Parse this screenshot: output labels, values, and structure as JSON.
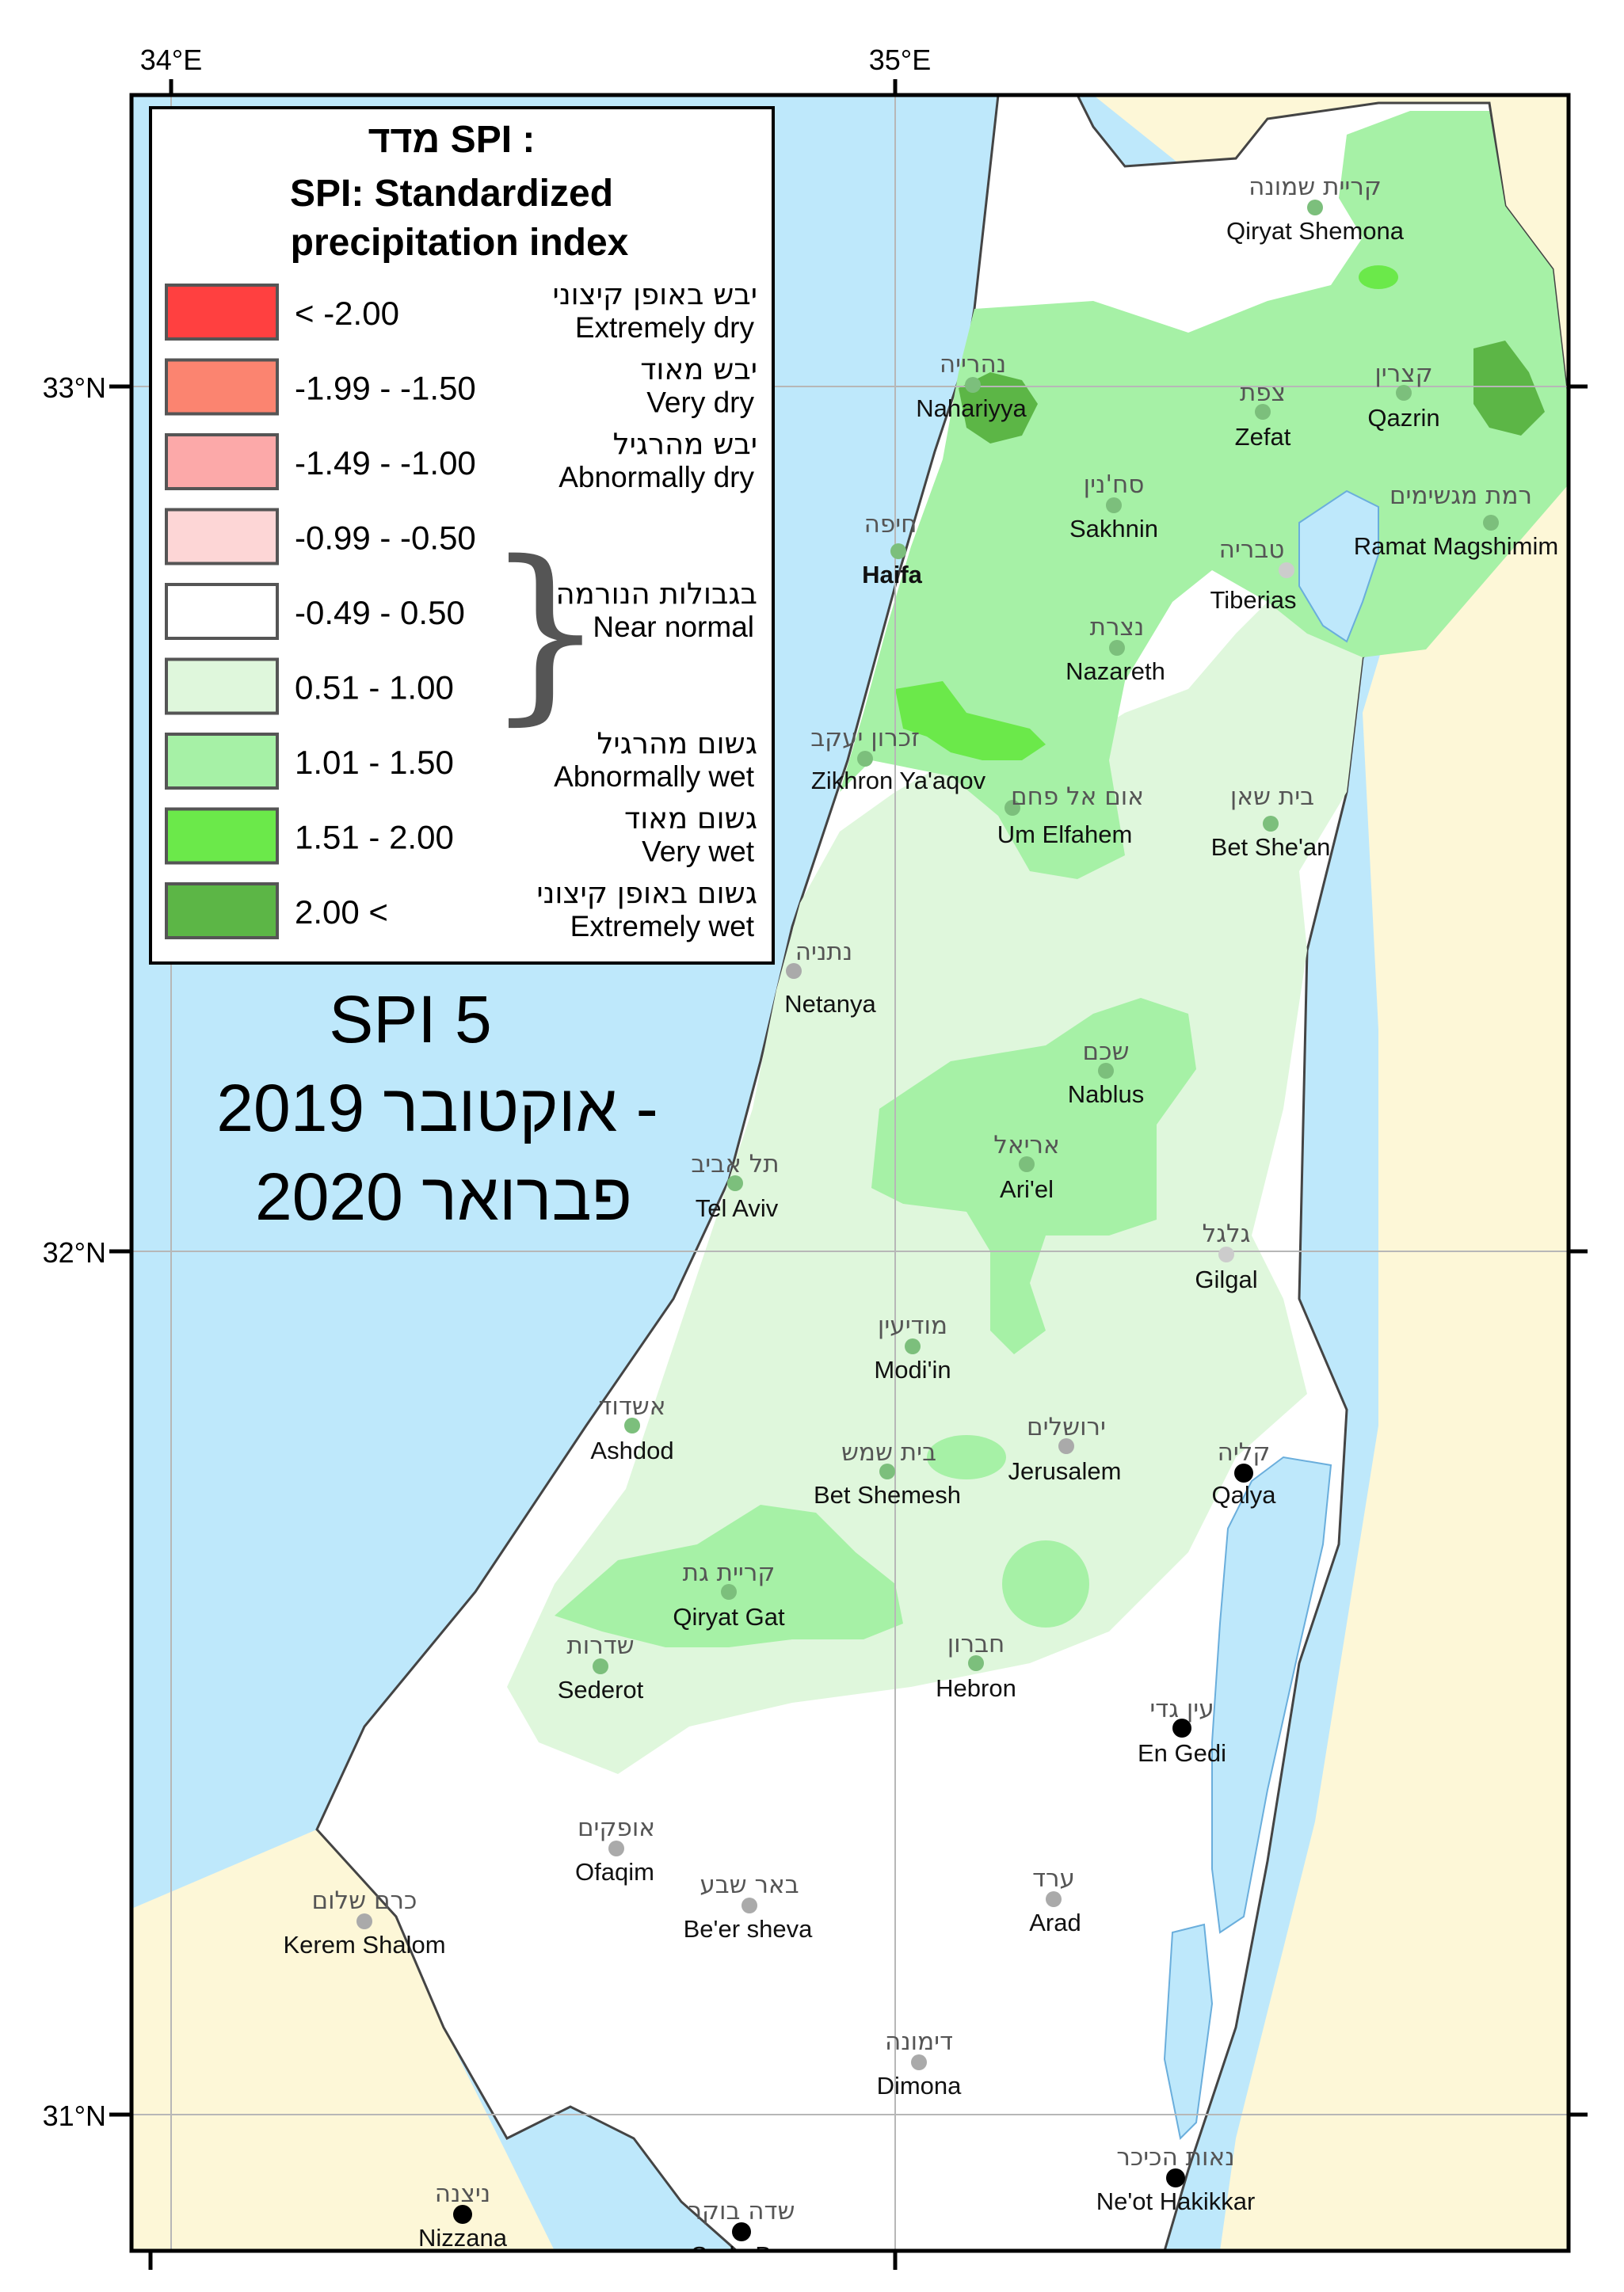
{
  "grid": {
    "lon_labels": [
      "34°E",
      "35°E"
    ],
    "lat_labels": [
      "33°N",
      "32°N",
      "31°N"
    ]
  },
  "legend": {
    "title_he": "מדד SPI :",
    "title_en_line1": "SPI: Standardized",
    "title_en_line2": "precipitation index",
    "classes": [
      {
        "range": "< -2.00",
        "color": "#ff4040",
        "label_he": "יבש באופן קיצוני",
        "label_en": "Extremely dry"
      },
      {
        "range": "-1.99 - -1.50",
        "color": "#fb8470",
        "label_he": "יבש מאוד",
        "label_en": "Very dry"
      },
      {
        "range": "-1.49 - -1.00",
        "color": "#fca9a9",
        "label_he": "יבש מהרגיל",
        "label_en": "Abnormally dry"
      },
      {
        "range": "-0.99 - -0.50",
        "color": "#fdd6d6",
        "label_he": "",
        "label_en": ""
      },
      {
        "range": "-0.49 - 0.50",
        "color": "#ffffff",
        "label_he": "בגבולות הנורמה",
        "label_en": "Near normal"
      },
      {
        "range": "0.51 - 1.00",
        "color": "#dff7dc",
        "label_he": "",
        "label_en": ""
      },
      {
        "range": "1.01 - 1.50",
        "color": "#a6f1a6",
        "label_he": "גשום מהרגיל",
        "label_en": "Abnormally wet"
      },
      {
        "range": "1.51 - 2.00",
        "color": "#6be94a",
        "label_he": "גשום מאוד",
        "label_en": "Very wet"
      },
      {
        "range": "2.00 <",
        "color": "#5cb646",
        "label_he": "גשום באופן קיצוני",
        "label_en": "Extremely wet"
      }
    ]
  },
  "overlay": {
    "line1": "SPI 5",
    "line2": "אוקטובר 2019 -",
    "line3": "פברואר 2020"
  },
  "cities": [
    {
      "he": "קריית שמונה",
      "en": "Qiryat Shemona"
    },
    {
      "he": "נהרייה",
      "en": "Nahariyya"
    },
    {
      "he": "צפת",
      "en": "Zefat"
    },
    {
      "he": "קצרין",
      "en": "Qazrin"
    },
    {
      "he": "סח'נין",
      "en": "Sakhnin"
    },
    {
      "he": "חיפה",
      "en": "Haifa"
    },
    {
      "he": "רמת מגשימים",
      "en": "Ramat Magshimim"
    },
    {
      "he": "טבריה",
      "en": "Tiberias"
    },
    {
      "he": "נצרת",
      "en": "Nazareth"
    },
    {
      "he": "זכרון יעקב",
      "en": "Zikhron Ya'aqov"
    },
    {
      "he": "אום אל פחם",
      "en": "Um Elfahem"
    },
    {
      "he": "בית שאן",
      "en": "Bet She'an"
    },
    {
      "he": "נתניה",
      "en": "Netanya"
    },
    {
      "he": "שכם",
      "en": "Nablus"
    },
    {
      "he": "אריאל",
      "en": "Ari'el"
    },
    {
      "he": "תל אביב",
      "en": "Tel Aviv"
    },
    {
      "he": "גלגל",
      "en": "Gilgal"
    },
    {
      "he": "מודיעין",
      "en": "Modi'in"
    },
    {
      "he": "אשדוד",
      "en": "Ashdod"
    },
    {
      "he": "ירושלים",
      "en": "Jerusalem"
    },
    {
      "he": "בית שמש",
      "en": "Bet Shemesh"
    },
    {
      "he": "קליה",
      "en": "Qalya"
    },
    {
      "he": "קריית גת",
      "en": "Qiryat Gat"
    },
    {
      "he": "שדרות",
      "en": "Sederot"
    },
    {
      "he": "חברון",
      "en": "Hebron"
    },
    {
      "he": "עין גדי",
      "en": "En Gedi"
    },
    {
      "he": "אופקים",
      "en": "Ofaqim"
    },
    {
      "he": "כרם שלום",
      "en": "Kerem Shalom"
    },
    {
      "he": "באר שבע",
      "en": "Be'er sheva"
    },
    {
      "he": "ערד",
      "en": "Arad"
    },
    {
      "he": "דימונה",
      "en": "Dimona"
    },
    {
      "he": "נאות הכיכר",
      "en": "Ne'ot Hakikkar"
    },
    {
      "he": "ניצנה",
      "en": "Nizzana"
    },
    {
      "he": "שדה בוקר",
      "en": "Sede B..."
    }
  ]
}
